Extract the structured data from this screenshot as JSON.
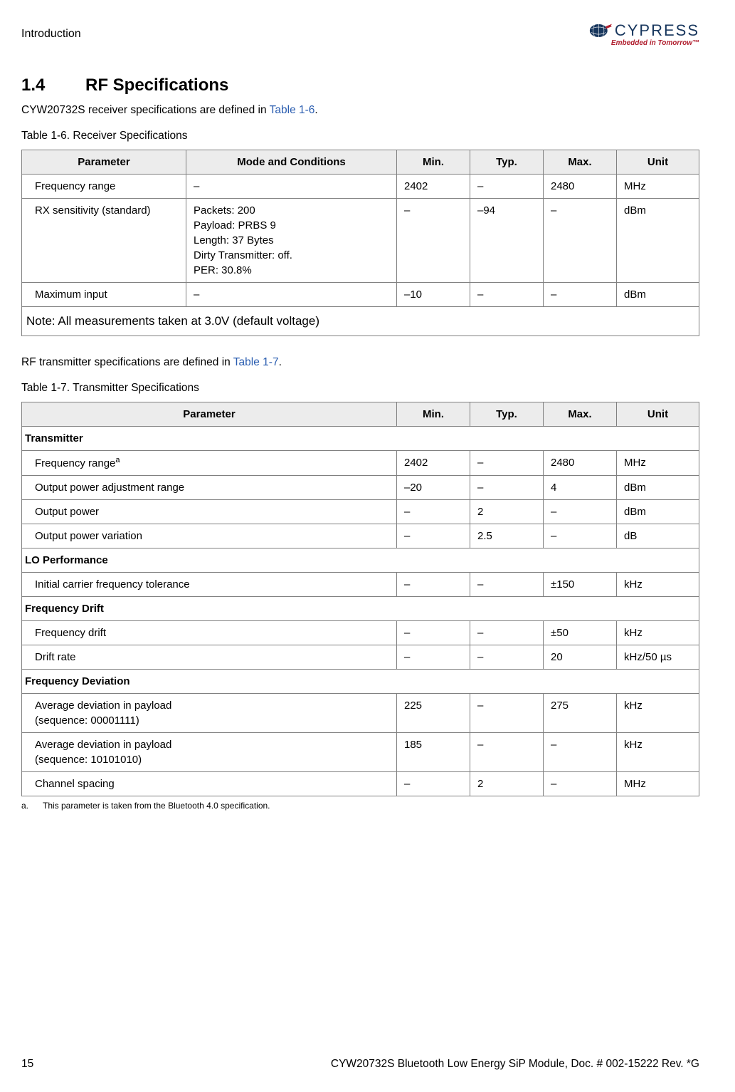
{
  "header": {
    "breadcrumb": "Introduction",
    "logo_name": "CYPRESS",
    "logo_tagline": "Embedded in Tomorrow™"
  },
  "section": {
    "number": "1.4",
    "title": "RF Specifications"
  },
  "intro1_pre": "CYW20732S receiver specifications are defined in ",
  "intro1_link": "Table 1-6",
  "intro1_post": ".",
  "table6": {
    "caption": "Table 1-6.  Receiver Specifications",
    "headers": [
      "Parameter",
      "Mode and Conditions",
      "Min.",
      "Typ.",
      "Max.",
      "Unit"
    ],
    "rows": [
      {
        "param": "Frequency range",
        "mode": "–",
        "min": "2402",
        "typ": "–",
        "max": "2480",
        "unit": "MHz"
      },
      {
        "param": "RX sensitivity (standard)",
        "mode": "Packets: 200\nPayload: PRBS 9\nLength: 37 Bytes\nDirty Transmitter: off.\nPER: 30.8%",
        "min": "–",
        "typ": "–94",
        "max": "–",
        "unit": "dBm"
      },
      {
        "param": "Maximum input",
        "mode": "–",
        "min": "–10",
        "typ": "–",
        "max": "–",
        "unit": "dBm"
      }
    ],
    "note": "Note: All measurements taken at 3.0V (default voltage)"
  },
  "intro2_pre": "RF transmitter specifications are defined in ",
  "intro2_link": "Table 1-7",
  "intro2_post": ".",
  "table7": {
    "caption": "Table 1-7.  Transmitter Specifications",
    "headers": [
      "Parameter",
      "Min.",
      "Typ.",
      "Max.",
      "Unit"
    ],
    "sections": [
      {
        "title": "Transmitter",
        "rows": [
          {
            "param": "Frequency range",
            "sup": "a",
            "min": "2402",
            "typ": "–",
            "max": "2480",
            "unit": "MHz"
          },
          {
            "param": "Output power adjustment range",
            "min": "–20",
            "typ": "–",
            "max": "4",
            "unit": "dBm"
          },
          {
            "param": "Output power",
            "min": "–",
            "typ": "2",
            "max": "–",
            "unit": "dBm"
          },
          {
            "param": "Output power variation",
            "min": "–",
            "typ": "2.5",
            "max": "–",
            "unit": "dB"
          }
        ]
      },
      {
        "title": "LO Performance",
        "rows": [
          {
            "param": "Initial carrier frequency tolerance",
            "min": "–",
            "typ": "–",
            "max": "±150",
            "unit": "kHz"
          }
        ]
      },
      {
        "title": "Frequency Drift",
        "rows": [
          {
            "param": "Frequency drift",
            "min": "–",
            "typ": "–",
            "max": "±50",
            "unit": "kHz"
          },
          {
            "param": "Drift rate",
            "min": "–",
            "typ": "–",
            "max": "20",
            "unit": "kHz/50 µs"
          }
        ]
      },
      {
        "title": "Frequency Deviation",
        "rows": [
          {
            "param": "Average deviation in payload\n(sequence: 00001111)",
            "min": "225",
            "typ": "–",
            "max": "275",
            "unit": "kHz"
          },
          {
            "param": "Average deviation in payload\n(sequence: 10101010)",
            "min": "185",
            "typ": "–",
            "max": "–",
            "unit": "kHz"
          },
          {
            "param": "Channel spacing",
            "min": "–",
            "typ": "2",
            "max": "–",
            "unit": "MHz"
          }
        ]
      }
    ],
    "footnote_label": "a.",
    "footnote_text": "This parameter is taken from the Bluetooth 4.0 specification."
  },
  "footer": {
    "page": "15",
    "doc": "CYW20732S Bluetooth Low Energy SiP Module, Doc. # 002-15222 Rev. *G"
  },
  "colors": {
    "link": "#2a5db0",
    "logo_word": "#17365d",
    "logo_tag": "#b01e2e",
    "th_bg": "#ececec",
    "border": "#808080"
  }
}
